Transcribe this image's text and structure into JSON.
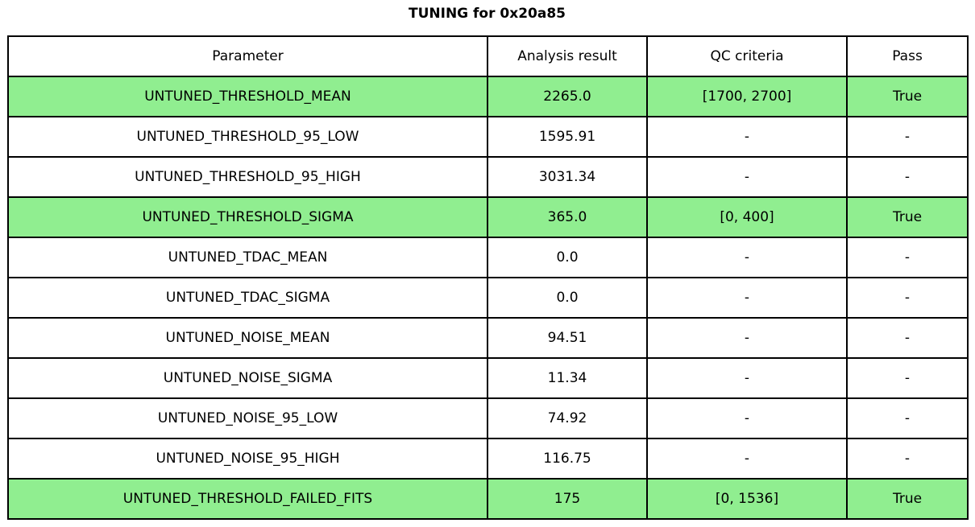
{
  "title": "TUNING for 0x20a85",
  "colors": {
    "highlight_green": "#90ee90",
    "border": "#000000",
    "background": "#ffffff",
    "text": "#000000"
  },
  "chart_data": {
    "type": "table",
    "title": "TUNING for 0x20a85",
    "columns": [
      "Parameter",
      "Analysis result",
      "QC criteria",
      "Pass"
    ],
    "rows": [
      {
        "parameter": "UNTUNED_THRESHOLD_MEAN",
        "analysis_result": "2265.0",
        "qc_criteria": "[1700, 2700]",
        "pass": "True",
        "highlighted": true
      },
      {
        "parameter": "UNTUNED_THRESHOLD_95_LOW",
        "analysis_result": "1595.91",
        "qc_criteria": "-",
        "pass": "-",
        "highlighted": false
      },
      {
        "parameter": "UNTUNED_THRESHOLD_95_HIGH",
        "analysis_result": "3031.34",
        "qc_criteria": "-",
        "pass": "-",
        "highlighted": false
      },
      {
        "parameter": "UNTUNED_THRESHOLD_SIGMA",
        "analysis_result": "365.0",
        "qc_criteria": "[0, 400]",
        "pass": "True",
        "highlighted": true
      },
      {
        "parameter": "UNTUNED_TDAC_MEAN",
        "analysis_result": "0.0",
        "qc_criteria": "-",
        "pass": "-",
        "highlighted": false
      },
      {
        "parameter": "UNTUNED_TDAC_SIGMA",
        "analysis_result": "0.0",
        "qc_criteria": "-",
        "pass": "-",
        "highlighted": false
      },
      {
        "parameter": "UNTUNED_NOISE_MEAN",
        "analysis_result": "94.51",
        "qc_criteria": "-",
        "pass": "-",
        "highlighted": false
      },
      {
        "parameter": "UNTUNED_NOISE_SIGMA",
        "analysis_result": "11.34",
        "qc_criteria": "-",
        "pass": "-",
        "highlighted": false
      },
      {
        "parameter": "UNTUNED_NOISE_95_LOW",
        "analysis_result": "74.92",
        "qc_criteria": "-",
        "pass": "-",
        "highlighted": false
      },
      {
        "parameter": "UNTUNED_NOISE_95_HIGH",
        "analysis_result": "116.75",
        "qc_criteria": "-",
        "pass": "-",
        "highlighted": false
      },
      {
        "parameter": "UNTUNED_THRESHOLD_FAILED_FITS",
        "analysis_result": "175",
        "qc_criteria": "[0, 1536]",
        "pass": "True",
        "highlighted": true
      }
    ]
  }
}
